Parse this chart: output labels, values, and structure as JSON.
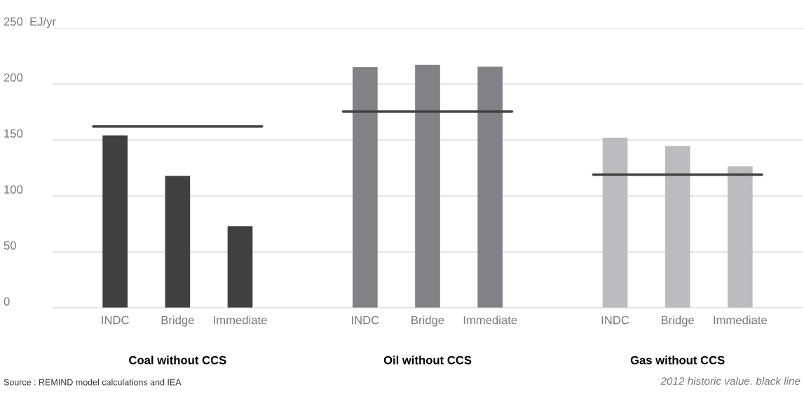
{
  "chart_data": [
    {
      "type": "bar",
      "categories": [
        "INDC",
        "Bridge",
        "Immediate"
      ],
      "values": [
        154,
        118,
        73
      ],
      "color": "#404040",
      "xlabel": "Coal without CCS",
      "ylim": [
        0,
        250
      ],
      "yticks": [
        0,
        50,
        100,
        150,
        200,
        {
          "value": 250,
          "label": "250  EJ/yr"
        }
      ],
      "grid": "y",
      "ref_lines": [
        {
          "axis": "y",
          "value": 162,
          "color": "#404040"
        }
      ],
      "annotations": [
        "Source : REMIND model calculations and IEA"
      ]
    },
    {
      "type": "bar",
      "categories": [
        "INDC",
        "Bridge",
        "Immediate"
      ],
      "values": [
        215,
        217,
        215.5
      ],
      "color": "#818285",
      "xlabel": "Oil without CCS",
      "ylim": [
        0,
        250
      ],
      "yticks": [
        0,
        50,
        100,
        150,
        200,
        250
      ],
      "grid": "y",
      "tick_labels": "x",
      "ref_lines": [
        {
          "axis": "y",
          "value": 175.5,
          "color": "#404040"
        }
      ]
    },
    {
      "type": "bar",
      "categories": [
        "INDC",
        "Bridge",
        "Immediate"
      ],
      "values": [
        152,
        144.5,
        126.5
      ],
      "color": "#bbbcbf",
      "xlabel": "Gas without CCS",
      "ylim": [
        0,
        250
      ],
      "yticks": [
        0,
        50,
        100,
        150,
        200,
        250
      ],
      "grid": "y",
      "tick_labels": "x",
      "ref_lines": [
        {
          "axis": "y",
          "value": 119,
          "color": "#404040"
        }
      ],
      "annotations": [
        "2012 historic value. black line"
      ]
    }
  ]
}
